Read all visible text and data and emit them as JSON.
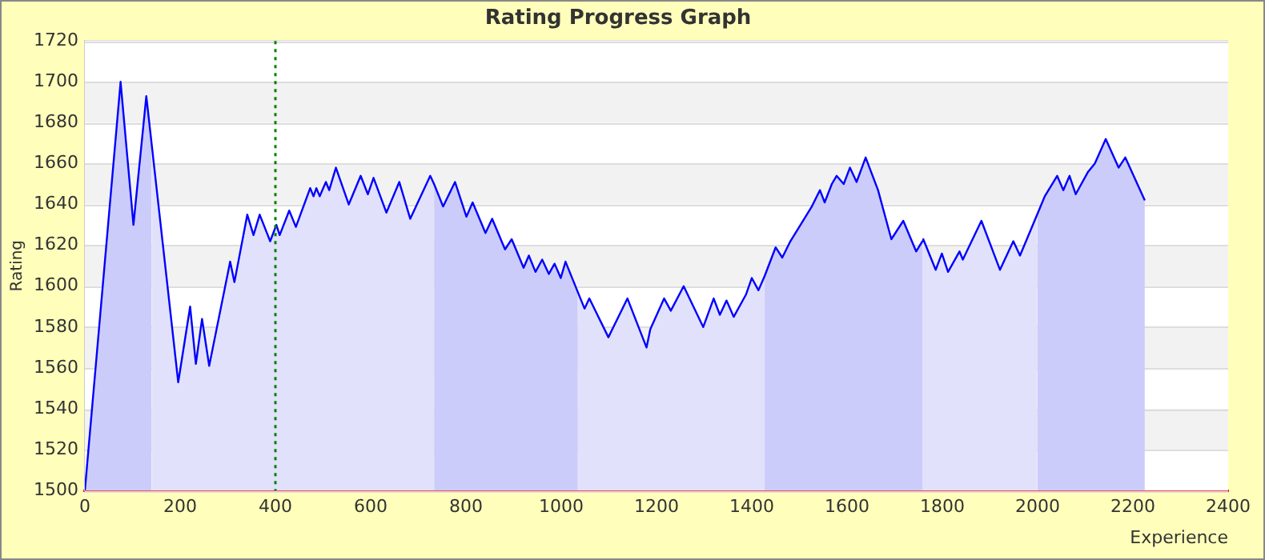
{
  "chart_data": {
    "type": "area",
    "title": "Rating Progress Graph",
    "xlabel": "Experience",
    "ylabel": "Rating",
    "xlim": [
      0,
      2400
    ],
    "xticks": [
      0,
      200,
      400,
      600,
      800,
      1000,
      1200,
      1400,
      1600,
      1800,
      2000,
      2200,
      2400
    ],
    "ylim": [
      1500,
      1720
    ],
    "yticks": [
      1500,
      1520,
      1540,
      1560,
      1580,
      1600,
      1620,
      1640,
      1660,
      1680,
      1700,
      1720
    ],
    "grid": "y",
    "legend": false,
    "marker": "none",
    "series": [
      {
        "type": "line",
        "color": "#0000ff",
        "x": [
          0,
          75,
          102,
          129,
          140,
          196,
          221,
          233,
          246,
          261,
          305,
          314,
          341,
          354,
          367,
          389,
          402,
          409,
          429,
          443,
          473,
          480,
          486,
          493,
          506,
          513,
          527,
          554,
          579,
          594,
          606,
          633,
          660,
          683,
          725,
          733,
          752,
          777,
          801,
          814,
          841,
          855,
          882,
          896,
          921,
          932,
          946,
          960,
          974,
          986,
          999,
          1009,
          1035,
          1049,
          1059,
          1099,
          1139,
          1179,
          1187,
          1216,
          1230,
          1257,
          1298,
          1320,
          1333,
          1347,
          1362,
          1388,
          1400,
          1414,
          1427,
          1450,
          1464,
          1481,
          1526,
          1543,
          1553,
          1568,
          1578,
          1593,
          1606,
          1620,
          1639,
          1665,
          1693,
          1718,
          1745,
          1758,
          1760,
          1786,
          1799,
          1812,
          1836,
          1843,
          1882,
          1921,
          1949,
          1963,
          1999,
          2015,
          2041,
          2054,
          2067,
          2080,
          2106,
          2120,
          2143,
          2170,
          2184,
          2225
        ],
        "values": [
          1500,
          1700,
          1630,
          1693,
          1670,
          1553,
          1590,
          1562,
          1584,
          1561,
          1612,
          1602,
          1635,
          1625,
          1635,
          1622,
          1630,
          1625,
          1637,
          1629,
          1648,
          1644,
          1648,
          1644,
          1651,
          1647,
          1658,
          1640,
          1654,
          1645,
          1653,
          1636,
          1651,
          1633,
          1654,
          1650,
          1639,
          1651,
          1634,
          1641,
          1626,
          1633,
          1618,
          1623,
          1609,
          1615,
          1607,
          1613,
          1606,
          1611,
          1604,
          1612,
          1597,
          1589,
          1594,
          1575,
          1594,
          1570,
          1579,
          1594,
          1588,
          1600,
          1580,
          1594,
          1586,
          1593,
          1585,
          1596,
          1604,
          1598,
          1605,
          1619,
          1614,
          1622,
          1639,
          1647,
          1641,
          1650,
          1654,
          1650,
          1658,
          1651,
          1663,
          1647,
          1623,
          1632,
          1617,
          1622,
          1623,
          1608,
          1616,
          1607,
          1617,
          1613,
          1632,
          1608,
          1622,
          1615,
          1635,
          1644,
          1654,
          1647,
          1654,
          1645,
          1656,
          1660,
          1672,
          1658,
          1663,
          1642
        ]
      },
      {
        "color": "#ccccfa",
        "x": [
          0,
          75,
          102,
          129,
          140
        ],
        "values": [
          1500,
          1700,
          1630,
          1693,
          1670
        ]
      },
      {
        "color": "#e1e1fc",
        "x": [
          140,
          196,
          221,
          233,
          246,
          261,
          305,
          314,
          341,
          354,
          367,
          389,
          402,
          409,
          429,
          443,
          473,
          480,
          486,
          493,
          506,
          513,
          527,
          554,
          579,
          594,
          606,
          633,
          660,
          683,
          725,
          733
        ],
        "values": [
          1670,
          1553,
          1590,
          1562,
          1584,
          1561,
          1612,
          1602,
          1635,
          1625,
          1635,
          1622,
          1630,
          1625,
          1637,
          1629,
          1648,
          1644,
          1648,
          1644,
          1651,
          1647,
          1658,
          1640,
          1654,
          1645,
          1653,
          1636,
          1651,
          1633,
          1654,
          1650
        ]
      },
      {
        "color": "#ccccfa",
        "x": [
          733,
          752,
          777,
          801,
          814,
          841,
          855,
          882,
          896,
          921,
          932,
          946,
          960,
          974,
          986,
          999,
          1009,
          1035
        ],
        "values": [
          1650,
          1639,
          1651,
          1634,
          1641,
          1626,
          1633,
          1618,
          1623,
          1609,
          1615,
          1607,
          1613,
          1606,
          1611,
          1604,
          1612,
          1597
        ]
      },
      {
        "color": "#e1e1fc",
        "x": [
          1035,
          1049,
          1059,
          1099,
          1139,
          1179,
          1187,
          1216,
          1230,
          1257,
          1298,
          1320,
          1333,
          1347,
          1362,
          1388,
          1400,
          1414,
          1427
        ],
        "values": [
          1597,
          1589,
          1594,
          1575,
          1594,
          1570,
          1579,
          1594,
          1588,
          1600,
          1580,
          1594,
          1586,
          1593,
          1585,
          1596,
          1604,
          1598,
          1605
        ]
      },
      {
        "color": "#ccccfa",
        "x": [
          1427,
          1450,
          1464,
          1481,
          1526,
          1543,
          1553,
          1568,
          1578,
          1593,
          1606,
          1620,
          1639,
          1665,
          1693,
          1718,
          1745,
          1758
        ],
        "values": [
          1605,
          1619,
          1614,
          1622,
          1639,
          1647,
          1641,
          1650,
          1654,
          1650,
          1658,
          1651,
          1663,
          1647,
          1623,
          1632,
          1617,
          1622
        ]
      },
      {
        "color": "#e1e1fc",
        "x": [
          1758,
          1760,
          1786,
          1799,
          1812,
          1836,
          1843,
          1882,
          1921,
          1949,
          1963,
          1999
        ],
        "values": [
          1622,
          1623,
          1608,
          1616,
          1607,
          1617,
          1613,
          1632,
          1608,
          1622,
          1615,
          1635
        ]
      },
      {
        "color": "#ccccfa",
        "x": [
          1999,
          2015,
          2041,
          2054,
          2067,
          2080,
          2106,
          2120,
          2143,
          2170,
          2184,
          2225
        ],
        "values": [
          1635,
          1644,
          1654,
          1647,
          1654,
          1645,
          1656,
          1660,
          1672,
          1658,
          1663,
          1642
        ]
      }
    ],
    "ref_lines": [
      {
        "axis": "x",
        "value": 400,
        "color": "#008000",
        "line_style": "dotted"
      }
    ]
  }
}
